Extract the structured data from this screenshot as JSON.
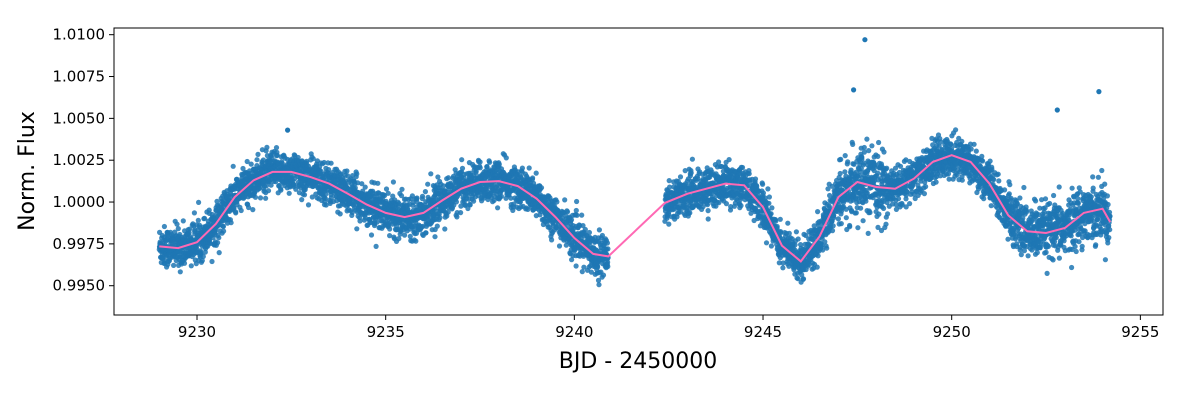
{
  "chart_data": {
    "type": "scatter",
    "title": "",
    "xlabel": "BJD - 2450000",
    "ylabel": "Norm. Flux",
    "xlim": [
      9227.8,
      9255.6
    ],
    "ylim": [
      0.99325,
      1.0104
    ],
    "xticks": [
      9230,
      9235,
      9240,
      9245,
      9250,
      9255
    ],
    "yticks": [
      0.995,
      0.9975,
      1.0,
      1.0025,
      1.005,
      1.0075,
      1.01
    ],
    "xtick_labels": [
      "9230",
      "9235",
      "9240",
      "9245",
      "9250",
      "9255"
    ],
    "ytick_labels": [
      "0.9950",
      "0.9975",
      "1.0000",
      "1.0025",
      "1.0050",
      "1.0075",
      "1.0100"
    ],
    "grid": false,
    "legend": "none",
    "colors": {
      "points": "#1f77b4",
      "model": "#ff69b4",
      "axes": "#000000"
    },
    "series": [
      {
        "kind": "scatter",
        "segments": [
          [
            9229.0,
            9240.9
          ],
          [
            9242.4,
            9254.2
          ]
        ],
        "scatter_sigma": 0.0008,
        "outliers": [
          [
            9247.7,
            1.0097
          ],
          [
            9253.9,
            1.0066
          ],
          [
            9247.4,
            1.0067
          ],
          [
            9232.4,
            1.0043
          ],
          [
            9252.8,
            1.0055
          ]
        ]
      },
      {
        "kind": "line",
        "x": [
          9229.0,
          9229.5,
          9230.0,
          9230.5,
          9231.0,
          9231.5,
          9232.0,
          9232.5,
          9233.0,
          9233.5,
          9234.0,
          9234.5,
          9235.0,
          9235.5,
          9236.0,
          9236.5,
          9237.0,
          9237.5,
          9238.0,
          9238.5,
          9239.0,
          9239.5,
          9240.0,
          9240.5,
          9240.9,
          9242.4,
          9243.0,
          9243.5,
          9244.0,
          9244.5,
          9245.0,
          9245.5,
          9246.0,
          9246.5,
          9247.0,
          9247.5,
          9248.0,
          9248.5,
          9249.0,
          9249.5,
          9250.0,
          9250.5,
          9251.0,
          9251.5,
          9252.0,
          9252.5,
          9253.0,
          9253.5,
          9254.0,
          9254.2
        ],
        "y": [
          0.99735,
          0.99725,
          0.9976,
          0.9987,
          1.0003,
          1.0013,
          1.0018,
          1.0018,
          1.0015,
          1.0011,
          1.0005,
          0.99985,
          0.99935,
          0.9991,
          0.99935,
          1.0001,
          1.0008,
          1.0012,
          1.00125,
          1.00095,
          1.0002,
          0.9991,
          0.99785,
          0.9969,
          0.99675,
          0.99995,
          1.0005,
          1.0008,
          1.0011,
          1.001,
          0.9997,
          0.9974,
          0.99645,
          0.99795,
          1.0003,
          1.0012,
          1.0009,
          1.0008,
          1.0014,
          1.0024,
          1.0028,
          1.0024,
          1.0011,
          0.9992,
          0.99825,
          0.99815,
          0.99845,
          0.99935,
          0.9996,
          0.9988
        ]
      }
    ]
  }
}
